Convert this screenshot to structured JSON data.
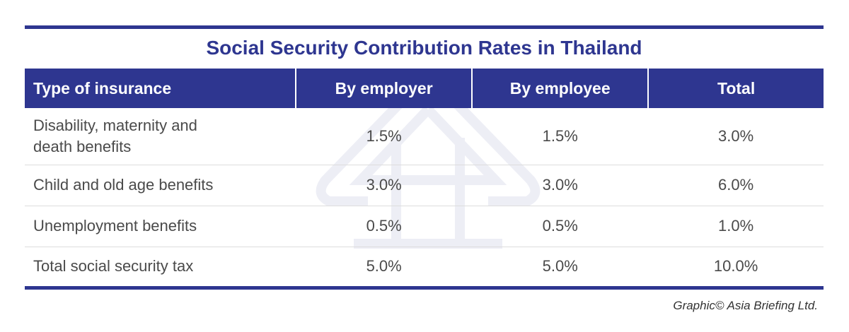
{
  "chart_data": {
    "type": "table",
    "title": "Social Security Contribution Rates in Thailand",
    "columns": [
      "Type of insurance",
      "By employer",
      "By employee",
      "Total"
    ],
    "rows": [
      [
        "Disability, maternity and death benefits",
        "1.5%",
        "1.5%",
        "3.0%"
      ],
      [
        "Child and old age benefits",
        "3.0%",
        "3.0%",
        "6.0%"
      ],
      [
        "Unemployment benefits",
        "0.5%",
        "0.5%",
        "1.0%"
      ],
      [
        "Total social security tax",
        "5.0%",
        "5.0%",
        "10.0%"
      ]
    ],
    "header_color": "#2e3690"
  },
  "credit": "Graphic© Asia Briefing Ltd."
}
